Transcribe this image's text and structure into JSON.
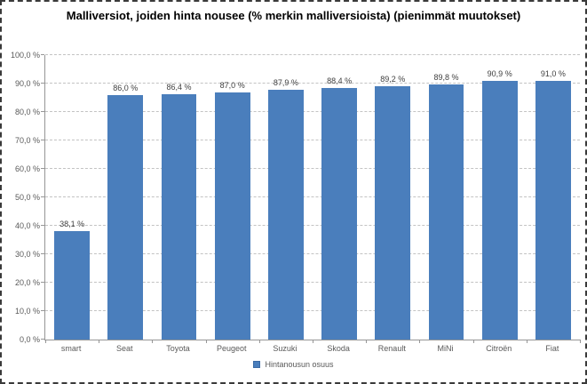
{
  "window": {
    "background_color": "#ffffff",
    "border_color": "#3a3a3a",
    "border_style": "dashed"
  },
  "chart_data": {
    "type": "bar",
    "title": "Malliversiot, joiden hinta nousee (% merkin malliversioista) (pienimmät muutokset)",
    "xlabel": "",
    "ylabel": "",
    "categories": [
      "smart",
      "Seat",
      "Toyota",
      "Peugeot",
      "Suzuki",
      "Skoda",
      "Renault",
      "MiNi",
      "Citroën",
      "Fiat"
    ],
    "values": [
      38.1,
      86.0,
      86.4,
      87.0,
      87.9,
      88.4,
      89.2,
      89.8,
      90.9,
      91.0
    ],
    "value_labels": [
      "38,1 %",
      "86,0 %",
      "86,4 %",
      "87,0 %",
      "87,9 %",
      "88,4 %",
      "89,2 %",
      "89,8 %",
      "90,9 %",
      "91,0 %"
    ],
    "ylim": [
      0,
      100
    ],
    "y_tick_step": 10,
    "y_tick_labels": [
      "0,0 %",
      "10,0 %",
      "20,0 %",
      "30,0 %",
      "40,0 %",
      "50,0 %",
      "60,0 %",
      "70,0 %",
      "80,0 %",
      "90,0 %",
      "100,0 %"
    ],
    "grid": true,
    "gridline_color": "#c3c3c3",
    "axis_line_color": "#969696",
    "bar_color": "#4a7ebc",
    "label_color": "#595959",
    "legend_position": "bottom",
    "legend": [
      {
        "label": "Hintanousun osuus",
        "color": "#4a7ebc"
      }
    ]
  }
}
